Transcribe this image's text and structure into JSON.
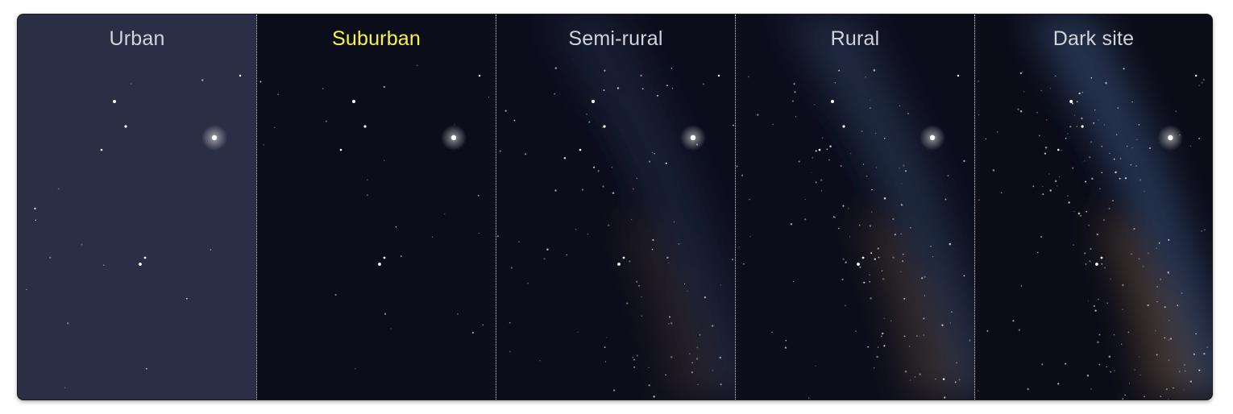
{
  "panels": [
    {
      "id": "urban",
      "label": "Urban",
      "selected": false,
      "background": "#2b2f45",
      "label_color": "#d2d4dc",
      "milky_way": 0
    },
    {
      "id": "suburban",
      "label": "Suburban",
      "selected": true,
      "background": "#0c0d1b",
      "label_color": "#f7f541",
      "milky_way": 0
    },
    {
      "id": "semi-rural",
      "label": "Semi-rural",
      "selected": false,
      "background": "#0c0d1b",
      "label_color": "#d2d4dc",
      "milky_way": 0.45
    },
    {
      "id": "rural",
      "label": "Rural",
      "selected": false,
      "background": "#0c0d1b",
      "label_color": "#d2d4dc",
      "milky_way": 0.7
    },
    {
      "id": "dark-site",
      "label": "Dark site",
      "selected": false,
      "background": "#0b0c18",
      "label_color": "#d2d4dc",
      "milky_way": 1
    }
  ],
  "colors": {
    "selected_label": "#f7f541",
    "label": "#d2d4dc",
    "divider": "#ffffff",
    "star": "#ffffff",
    "milky_way_blue": "#4a6a99",
    "milky_way_dust": "#8a6a46"
  },
  "icons": {
    "star": "star-icon"
  }
}
